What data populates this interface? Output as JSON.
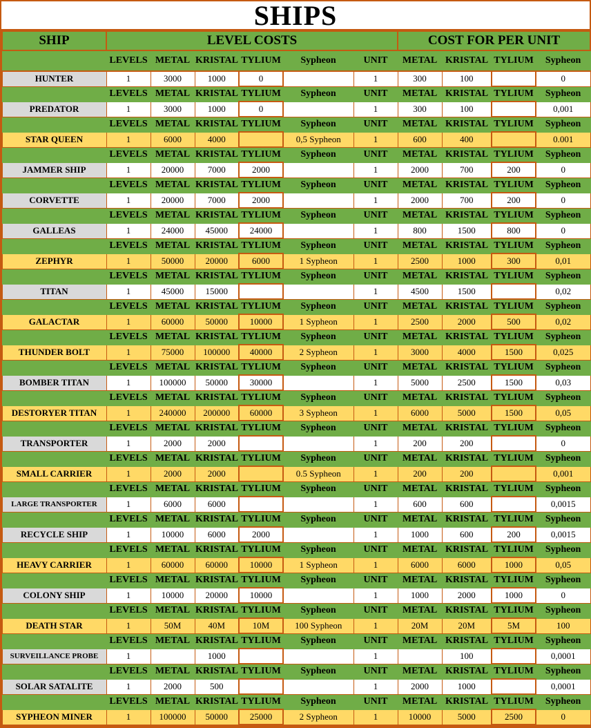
{
  "title": "SHIPS",
  "headers": {
    "ship": "SHIP",
    "level_costs": "LEVEL COSTS",
    "cost_per_unit": "COST FOR PER UNIT"
  },
  "cols": {
    "levels": "LEVELS",
    "metal": "METAL",
    "kristal": "KRISTAL",
    "tylium": "TYLIUM",
    "sypheon": "Sypheon",
    "unit": "UNIT"
  },
  "colors": {
    "green": "#70ad47",
    "orange_border": "#c55a11",
    "yellow": "#ffd966",
    "gray": "#d9d9d9",
    "white": "#ffffff"
  },
  "ships": [
    {
      "name": "HUNTER",
      "style": "gray",
      "levels": "1",
      "metal": "3000",
      "kristal": "1000",
      "tylium": "0",
      "sypheon": "",
      "unit": "1",
      "u_metal": "300",
      "u_kristal": "100",
      "u_tylium": "",
      "u_sypheon": "0"
    },
    {
      "name": "PREDATOR",
      "style": "gray",
      "levels": "1",
      "metal": "3000",
      "kristal": "1000",
      "tylium": "0",
      "sypheon": "",
      "unit": "1",
      "u_metal": "300",
      "u_kristal": "100",
      "u_tylium": "",
      "u_sypheon": "0,001"
    },
    {
      "name": "STAR QUEEN",
      "style": "yel",
      "levels": "1",
      "metal": "6000",
      "kristal": "4000",
      "tylium": "",
      "sypheon": "0,5 Sypheon",
      "unit": "1",
      "u_metal": "600",
      "u_kristal": "400",
      "u_tylium": "",
      "u_sypheon": "0.001"
    },
    {
      "name": "JAMMER SHIP",
      "style": "gray",
      "levels": "1",
      "metal": "20000",
      "kristal": "7000",
      "tylium": "2000",
      "sypheon": "",
      "unit": "1",
      "u_metal": "2000",
      "u_kristal": "700",
      "u_tylium": "200",
      "u_sypheon": "0"
    },
    {
      "name": "CORVETTE",
      "style": "gray",
      "levels": "1",
      "metal": "20000",
      "kristal": "7000",
      "tylium": "2000",
      "sypheon": "",
      "unit": "1",
      "u_metal": "2000",
      "u_kristal": "700",
      "u_tylium": "200",
      "u_sypheon": "0"
    },
    {
      "name": "GALLEAS",
      "style": "gray",
      "levels": "1",
      "metal": "24000",
      "kristal": "45000",
      "tylium": "24000",
      "sypheon": "",
      "unit": "1",
      "u_metal": "800",
      "u_kristal": "1500",
      "u_tylium": "800",
      "u_sypheon": "0"
    },
    {
      "name": "ZEPHYR",
      "style": "yel",
      "levels": "1",
      "metal": "50000",
      "kristal": "20000",
      "tylium": "6000",
      "sypheon": "1 Sypheon",
      "unit": "1",
      "u_metal": "2500",
      "u_kristal": "1000",
      "u_tylium": "300",
      "u_sypheon": "0,01"
    },
    {
      "name": "TITAN",
      "style": "gray",
      "levels": "1",
      "metal": "45000",
      "kristal": "15000",
      "tylium": "",
      "sypheon": "",
      "unit": "1",
      "u_metal": "4500",
      "u_kristal": "1500",
      "u_tylium": "",
      "u_sypheon": "0,02"
    },
    {
      "name": "GALACTAR",
      "style": "yel",
      "levels": "1",
      "metal": "60000",
      "kristal": "50000",
      "tylium": "10000",
      "sypheon": "1 Sypheon",
      "unit": "1",
      "u_metal": "2500",
      "u_kristal": "2000",
      "u_tylium": "500",
      "u_sypheon": "0,02"
    },
    {
      "name": "THUNDER BOLT",
      "style": "yel",
      "levels": "1",
      "metal": "75000",
      "kristal": "100000",
      "tylium": "40000",
      "sypheon": "2 Sypheon",
      "unit": "1",
      "u_metal": "3000",
      "u_kristal": "4000",
      "u_tylium": "1500",
      "u_sypheon": "0,025"
    },
    {
      "name": "BOMBER TITAN",
      "style": "gray",
      "levels": "1",
      "metal": "100000",
      "kristal": "50000",
      "tylium": "30000",
      "sypheon": "",
      "unit": "1",
      "u_metal": "5000",
      "u_kristal": "2500",
      "u_tylium": "1500",
      "u_sypheon": "0,03"
    },
    {
      "name": "DESTORYER TITAN",
      "style": "yel",
      "levels": "1",
      "metal": "240000",
      "kristal": "200000",
      "tylium": "60000",
      "sypheon": "3 Sypheon",
      "unit": "1",
      "u_metal": "6000",
      "u_kristal": "5000",
      "u_tylium": "1500",
      "u_sypheon": "0,05"
    },
    {
      "name": "TRANSPORTER",
      "style": "gray",
      "levels": "1",
      "metal": "2000",
      "kristal": "2000",
      "tylium": "",
      "sypheon": "",
      "unit": "1",
      "u_metal": "200",
      "u_kristal": "200",
      "u_tylium": "",
      "u_sypheon": "0"
    },
    {
      "name": "SMALL CARRIER",
      "style": "yel",
      "levels": "1",
      "metal": "2000",
      "kristal": "2000",
      "tylium": "",
      "sypheon": "0.5 Sypheon",
      "unit": "1",
      "u_metal": "200",
      "u_kristal": "200",
      "u_tylium": "",
      "u_sypheon": "0,001"
    },
    {
      "name": "LARGE TRANSPORTER",
      "style": "gray",
      "small": true,
      "levels": "1",
      "metal": "6000",
      "kristal": "6000",
      "tylium": "",
      "sypheon": "",
      "unit": "1",
      "u_metal": "600",
      "u_kristal": "600",
      "u_tylium": "",
      "u_sypheon": "0,0015"
    },
    {
      "name": "RECYCLE SHIP",
      "style": "gray",
      "levels": "1",
      "metal": "10000",
      "kristal": "6000",
      "tylium": "2000",
      "sypheon": "",
      "unit": "1",
      "u_metal": "1000",
      "u_kristal": "600",
      "u_tylium": "200",
      "u_sypheon": "0,0015"
    },
    {
      "name": "HEAVY CARRIER",
      "style": "yel",
      "levels": "1",
      "metal": "60000",
      "kristal": "60000",
      "tylium": "10000",
      "sypheon": "1 Sypheon",
      "unit": "1",
      "u_metal": "6000",
      "u_kristal": "6000",
      "u_tylium": "1000",
      "u_sypheon": "0,05"
    },
    {
      "name": "COLONY SHIP",
      "style": "gray",
      "levels": "1",
      "metal": "10000",
      "kristal": "20000",
      "tylium": "10000",
      "sypheon": "",
      "unit": "1",
      "u_metal": "1000",
      "u_kristal": "2000",
      "u_tylium": "1000",
      "u_sypheon": "0"
    },
    {
      "name": "DEATH STAR",
      "style": "yel",
      "levels": "1",
      "metal": "50M",
      "kristal": "40M",
      "tylium": "10M",
      "sypheon": "100 Sypheon",
      "unit": "1",
      "u_metal": "20M",
      "u_kristal": "20M",
      "u_tylium": "5M",
      "u_sypheon": "100"
    },
    {
      "name": "SURVEILLANCE PROBE",
      "style": "gray",
      "small": true,
      "levels": "1",
      "metal": "",
      "kristal": "1000",
      "tylium": "",
      "sypheon": "",
      "unit": "1",
      "u_metal": "",
      "u_kristal": "100",
      "u_tylium": "",
      "u_sypheon": "0,0001"
    },
    {
      "name": "SOLAR SATALITE",
      "style": "gray",
      "levels": "1",
      "metal": "2000",
      "kristal": "500",
      "tylium": "",
      "sypheon": "",
      "unit": "1",
      "u_metal": "2000",
      "u_kristal": "1000",
      "u_tylium": "",
      "u_sypheon": "0,0001"
    },
    {
      "name": "SYPHEON MINER",
      "style": "yel",
      "levels": "1",
      "metal": "100000",
      "kristal": "50000",
      "tylium": "25000",
      "sypheon": "2 Sypheon",
      "unit": "1",
      "u_metal": "10000",
      "u_kristal": "5000",
      "u_tylium": "2500",
      "u_sypheon": "0"
    }
  ]
}
